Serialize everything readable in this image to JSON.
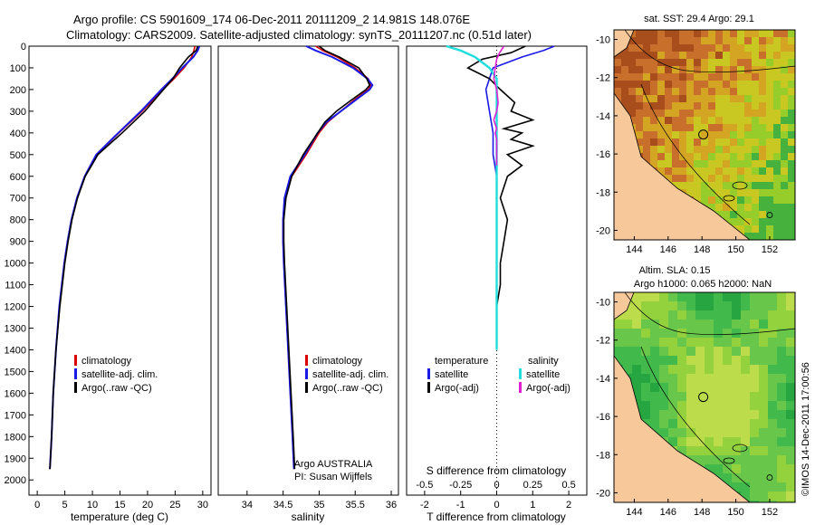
{
  "header": {
    "line1": "Argo profile: CS 5901609_174 06-Dec-2011 20111209_2 14.981S 148.076E",
    "line2": "Climatology: CARS2009. Satellite-adjusted climatology: synTS_20111207.nc (0.51d later)"
  },
  "colors": {
    "climatology": "#dd0000",
    "satellite": "#1a1ae6",
    "argo": "#000000",
    "sat_salinity": "#22dddd",
    "argo_salinity": "#e020d0",
    "land": "#f6c89a"
  },
  "depth_axis": {
    "ticks": [
      0,
      100,
      200,
      300,
      400,
      500,
      600,
      700,
      800,
      900,
      1000,
      1100,
      1200,
      1300,
      1400,
      1500,
      1600,
      1700,
      1800,
      1900,
      2000
    ],
    "range": [
      0,
      2070
    ]
  },
  "panels": {
    "temperature": {
      "xlabel": "temperature (deg C)",
      "xrange": [
        -1.5,
        31.5
      ],
      "ticks": [
        0,
        5,
        10,
        15,
        20,
        25,
        30
      ],
      "legend": [
        "climatology",
        "satellite-adj. clim.",
        "Argo(..raw -QC)"
      ]
    },
    "salinity": {
      "xlabel": "salinity",
      "xrange": [
        33.6,
        36.1
      ],
      "ticks": [
        "34",
        "34.5",
        "35",
        "35.5",
        "36"
      ],
      "tick_values": [
        34,
        34.5,
        35,
        35.5,
        36
      ],
      "legend": [
        "climatology",
        "satellite-adj. clim.",
        "Argo(..raw -QC)"
      ],
      "note1": "Argo AUSTRALIA",
      "note2": "PI: Susan Wijffels"
    },
    "difference": {
      "xlabel_bottom": "T difference from climatology",
      "xlabel_top": "S difference from climatology",
      "t_ticks": [
        "-2",
        "-1",
        "0",
        "1",
        "2"
      ],
      "t_values": [
        -2,
        -1,
        0,
        1,
        2
      ],
      "s_ticks": [
        "-0.5",
        "-0.25",
        "0",
        "0.25",
        "0.5"
      ],
      "s_values": [
        -0.5,
        -0.25,
        0,
        0.25,
        0.5
      ],
      "legend_temp_title": "temperature",
      "legend_sal_title": "salinity",
      "legend_temp": [
        "satellite",
        "Argo(-adj)"
      ],
      "legend_sal": [
        "satellite",
        "Argo(-adj)"
      ]
    }
  },
  "maps": {
    "sst": {
      "title": "sat. SST: 29.4 Argo: 29.1",
      "yticks": [
        "-10",
        "-12",
        "-14",
        "-16",
        "-18",
        "-20"
      ],
      "xticks": [
        "144",
        "146",
        "148",
        "150",
        "152"
      ]
    },
    "sla": {
      "title1": "Altim. SLA: 0.15",
      "title2": "Argo h1000: 0.065 h2000: NaN",
      "yticks": [
        "-10",
        "-12",
        "-14",
        "-16",
        "-18",
        "-20"
      ],
      "xticks": [
        "144",
        "146",
        "148",
        "150",
        "152"
      ]
    }
  },
  "credit": "©IMOS 14-Dec-2011 17:00:56",
  "chart_data": [
    {
      "type": "line",
      "xlabel": "temperature (deg C)",
      "ylabel": "",
      "y": [
        0,
        20,
        50,
        100,
        150,
        200,
        300,
        400,
        500,
        600,
        700,
        800,
        900,
        1000,
        1200,
        1400,
        1600,
        1800,
        1950
      ],
      "series": [
        {
          "name": "climatology",
          "values": [
            28.6,
            28.4,
            28.0,
            26.6,
            24.8,
            22.8,
            19.0,
            14.8,
            10.8,
            8.6,
            7.2,
            6.2,
            5.5,
            4.9,
            4.0,
            3.4,
            2.9,
            2.6,
            2.3
          ]
        },
        {
          "name": "satellite-adj. clim.",
          "values": [
            29.4,
            29.1,
            28.3,
            26.3,
            24.5,
            22.5,
            18.8,
            14.7,
            10.7,
            8.6,
            7.2,
            6.2,
            5.5,
            4.9,
            4.0,
            3.4,
            2.9,
            2.6,
            2.3
          ]
        },
        {
          "name": "Argo(..raw -QC)",
          "values": [
            29.1,
            28.8,
            27.4,
            25.8,
            24.6,
            22.9,
            19.5,
            15.4,
            11.0,
            8.7,
            7.3,
            6.3,
            5.6,
            5.0,
            4.1,
            3.4,
            2.9,
            2.6,
            2.3
          ]
        }
      ],
      "ylim": [
        0,
        2070
      ]
    },
    {
      "type": "line",
      "xlabel": "salinity",
      "ylabel": "",
      "y": [
        0,
        20,
        50,
        100,
        150,
        180,
        200,
        250,
        300,
        350,
        400,
        500,
        600,
        700,
        800,
        900,
        1000,
        1200,
        1400,
        1600,
        1800,
        1950
      ],
      "series": [
        {
          "name": "climatology",
          "values": [
            34.95,
            35.05,
            35.25,
            35.5,
            35.68,
            35.72,
            35.68,
            35.48,
            35.3,
            35.12,
            35.0,
            34.82,
            34.62,
            34.52,
            34.5,
            34.5,
            34.51,
            34.54,
            34.57,
            34.6,
            34.63,
            34.65
          ]
        },
        {
          "name": "satellite-adj. clim.",
          "values": [
            34.82,
            34.95,
            35.18,
            35.47,
            35.67,
            35.74,
            35.7,
            35.5,
            35.3,
            35.1,
            34.98,
            34.8,
            34.6,
            34.52,
            34.5,
            34.5,
            34.51,
            34.54,
            34.57,
            34.6,
            34.63,
            34.65
          ]
        },
        {
          "name": "Argo(..raw -QC)",
          "values": [
            35.0,
            35.08,
            35.28,
            35.55,
            35.66,
            35.7,
            35.65,
            35.44,
            35.24,
            35.08,
            34.98,
            34.78,
            34.62,
            34.54,
            34.51,
            34.51,
            34.52,
            34.55,
            34.58,
            34.61,
            34.64,
            34.66
          ]
        }
      ],
      "ylim": [
        0,
        2070
      ]
    },
    {
      "type": "line",
      "xlabel": "T difference from climatology",
      "ylabel": "",
      "y_temp_sat": [
        0,
        20,
        50,
        100,
        150,
        200,
        300,
        400,
        500,
        600,
        700,
        800,
        1000,
        1200,
        1400
      ],
      "y_argo_temp": [
        0,
        30,
        60,
        100,
        150,
        200,
        260,
        300,
        340,
        380,
        400,
        430,
        460,
        500,
        550,
        600,
        700,
        800,
        900,
        1000,
        1100,
        1200
      ],
      "series": [
        {
          "name": "temperature satellite",
          "values": [
            1.6,
            1.3,
            0.7,
            -0.1,
            -0.2,
            -0.3,
            -0.2,
            -0.1,
            -0.1,
            0.0,
            0.0,
            0.0,
            0.0,
            0.0,
            0.0
          ]
        },
        {
          "name": "temperature Argo(-adj)",
          "values": [
            0.8,
            0.4,
            -0.4,
            -0.8,
            -0.2,
            0.1,
            0.5,
            0.4,
            1.0,
            0.2,
            0.7,
            0.4,
            1.0,
            0.3,
            0.7,
            0.3,
            0.1,
            0.3,
            0.2,
            0.1,
            0.1,
            0.0
          ]
        },
        {
          "name": "salinity satellite",
          "values": [
            -0.35,
            -0.25,
            -0.15,
            -0.05,
            0.0,
            0.0,
            0.0,
            0.0,
            0.0,
            0.0,
            0.0,
            0.0,
            0.0,
            0.0,
            0.0
          ]
        },
        {
          "name": "salinity Argo(-adj)",
          "values": [
            0.05,
            0.02,
            0.0,
            -0.01,
            -0.02,
            0.0,
            0.01,
            0.0,
            -0.02,
            0.0,
            -0.01,
            0.0,
            0.0,
            0.0,
            0.0
          ]
        }
      ],
      "xlim": [
        -2.5,
        2.5
      ],
      "ylim": [
        0,
        2070
      ]
    }
  ]
}
